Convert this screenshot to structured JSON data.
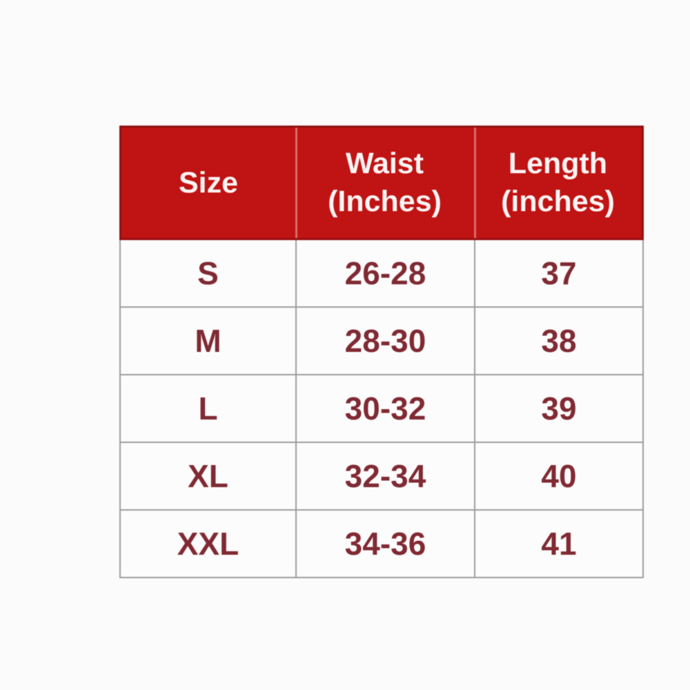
{
  "chart_data": {
    "type": "table",
    "columns": [
      "Size",
      "Waist (Inches)",
      "Length (inches)"
    ],
    "rows": [
      [
        "S",
        "26-28",
        "37"
      ],
      [
        "M",
        "28-30",
        "38"
      ],
      [
        "L",
        "30-32",
        "39"
      ],
      [
        "XL",
        "32-34",
        "40"
      ],
      [
        "XXL",
        "34-36",
        "41"
      ]
    ],
    "layout_hints": {
      "header_position": "top",
      "grid": "on",
      "header_bg": "#c01313",
      "header_text_color": "#ffffff",
      "body_text_color": "#802a33",
      "grid_color": "#9c9c9c"
    }
  },
  "table": {
    "header": {
      "size": {
        "line1": "Size"
      },
      "waist": {
        "line1": "Waist",
        "line2": "(Inches)"
      },
      "length": {
        "line1": "Length",
        "line2": "(inches)"
      }
    },
    "rows": [
      {
        "size": "S",
        "waist": "26-28",
        "length": "37"
      },
      {
        "size": "M",
        "waist": "28-30",
        "length": "38"
      },
      {
        "size": "L",
        "waist": "30-32",
        "length": "39"
      },
      {
        "size": "XL",
        "waist": "32-34",
        "length": "40"
      },
      {
        "size": "XXL",
        "waist": "34-36",
        "length": "41"
      }
    ]
  },
  "colors": {
    "header_bg": "#c01313",
    "header_edge": "#8e1212",
    "header_text": "#fdf4f4",
    "body_text": "#802a33",
    "grid_border": "#9c9c9c",
    "page_bg": "#fcfbfb",
    "cell_bg": "#fdfcfc"
  }
}
